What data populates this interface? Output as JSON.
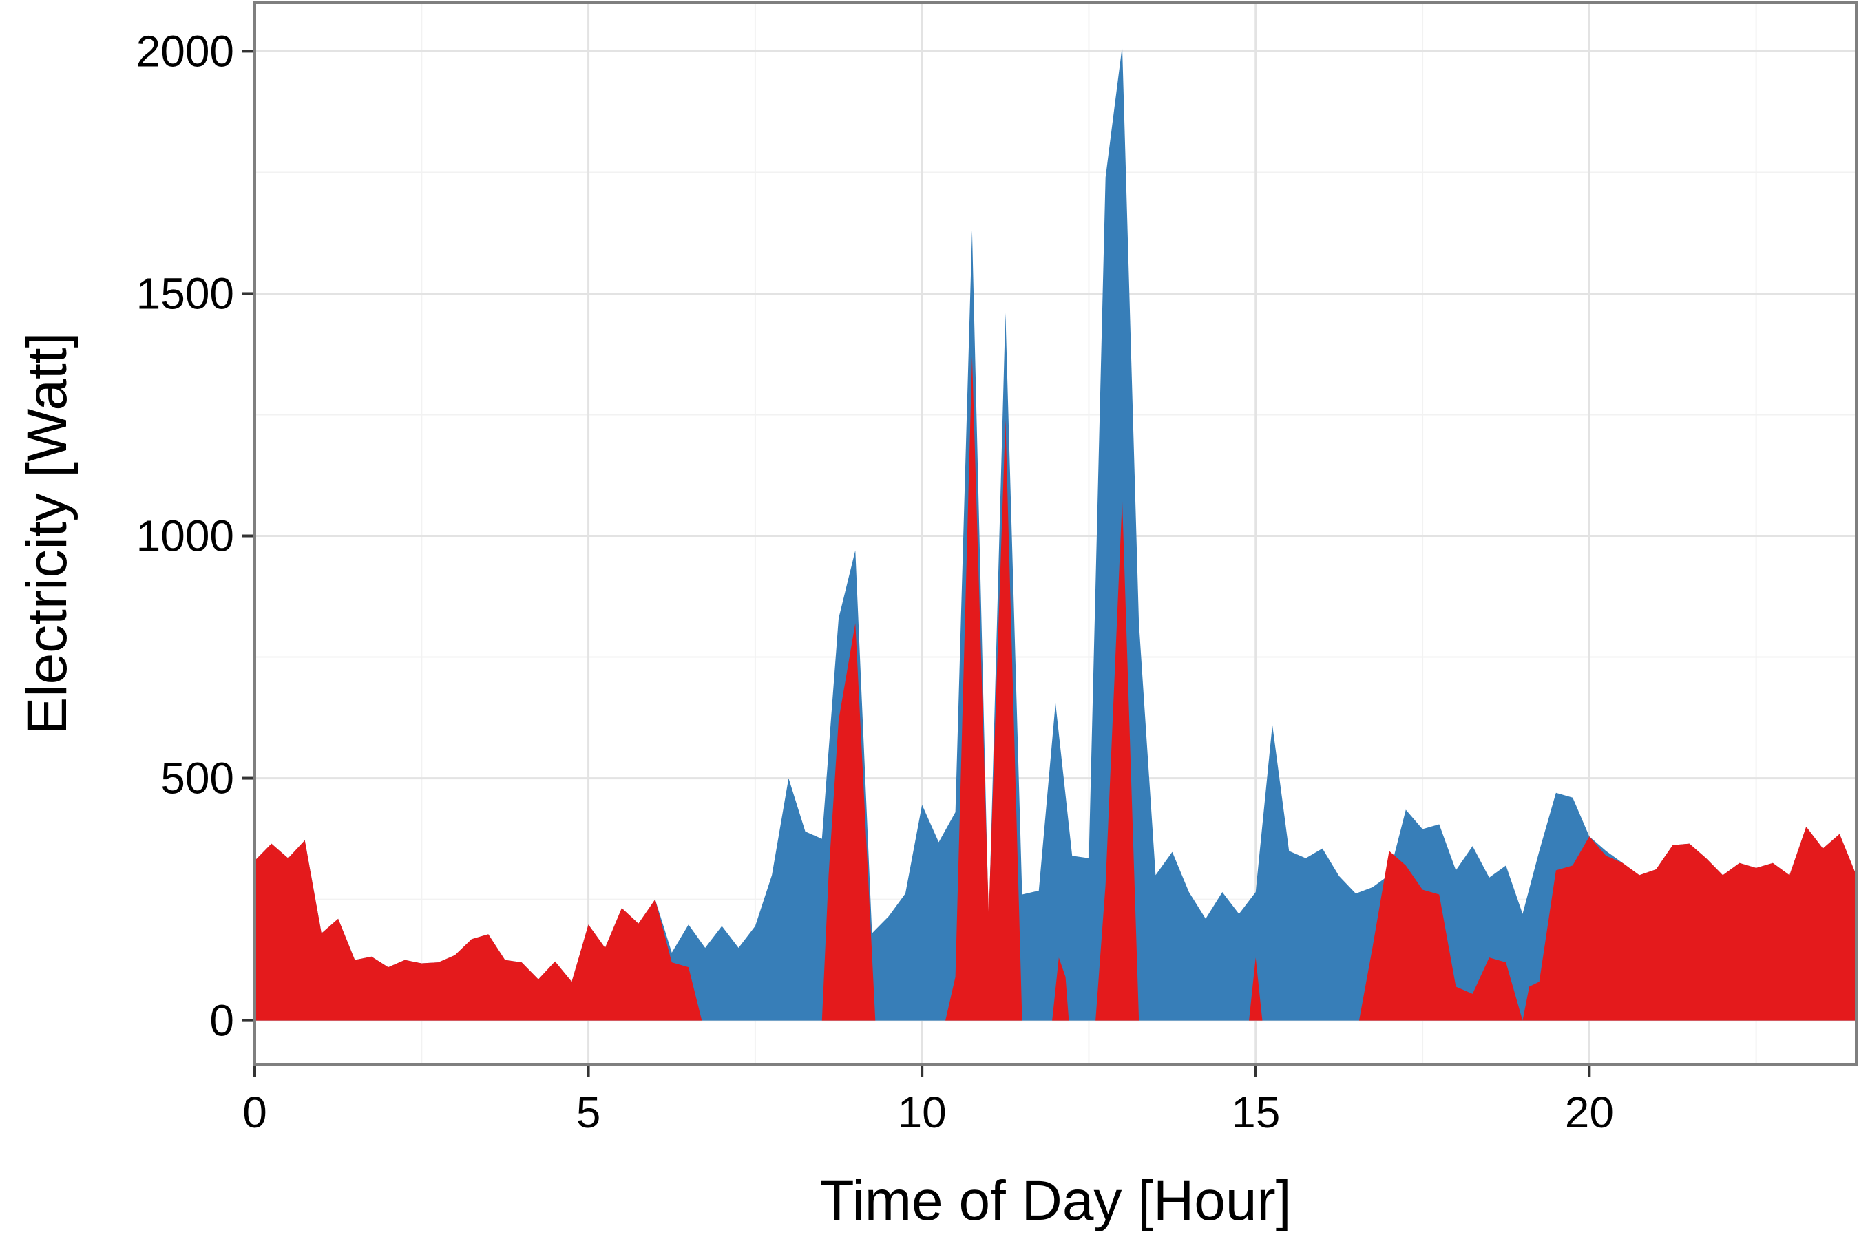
{
  "chart_data": {
    "type": "area",
    "xlabel": "Time of Day [Hour]",
    "ylabel": "Electricity [Watt]",
    "xlim": [
      0,
      24
    ],
    "ylim": [
      -90,
      2100
    ],
    "xticks": [
      0,
      5,
      10,
      15,
      20
    ],
    "yticks": [
      0,
      500,
      1000,
      1500,
      2000
    ],
    "grid": true,
    "legend": "none",
    "series": [
      {
        "color": "#377eb8",
        "points": [
          [
            0,
            330
          ],
          [
            0.25,
            365
          ],
          [
            0.5,
            335
          ],
          [
            0.75,
            372
          ],
          [
            1,
            180
          ],
          [
            1.25,
            210
          ],
          [
            1.5,
            125
          ],
          [
            1.75,
            132
          ],
          [
            2,
            110
          ],
          [
            2.25,
            125
          ],
          [
            2.5,
            118
          ],
          [
            2.75,
            120
          ],
          [
            3,
            135
          ],
          [
            3.25,
            168
          ],
          [
            3.5,
            178
          ],
          [
            3.75,
            125
          ],
          [
            4,
            120
          ],
          [
            4.25,
            85
          ],
          [
            4.5,
            122
          ],
          [
            4.75,
            80
          ],
          [
            5,
            198
          ],
          [
            5.25,
            150
          ],
          [
            5.5,
            232
          ],
          [
            5.75,
            200
          ],
          [
            6,
            250
          ],
          [
            6.25,
            140
          ],
          [
            6.5,
            198
          ],
          [
            6.75,
            150
          ],
          [
            7,
            195
          ],
          [
            7.25,
            150
          ],
          [
            7.5,
            195
          ],
          [
            7.75,
            300
          ],
          [
            8,
            500
          ],
          [
            8.25,
            390
          ],
          [
            8.5,
            375
          ],
          [
            8.75,
            830
          ],
          [
            9,
            970
          ],
          [
            9.25,
            180
          ],
          [
            9.5,
            215
          ],
          [
            9.75,
            262
          ],
          [
            10,
            445
          ],
          [
            10.25,
            368
          ],
          [
            10.5,
            430
          ],
          [
            10.75,
            1630
          ],
          [
            11,
            200
          ],
          [
            11.25,
            1460
          ],
          [
            11.5,
            260
          ],
          [
            11.75,
            268
          ],
          [
            12,
            655
          ],
          [
            12.25,
            340
          ],
          [
            12.5,
            335
          ],
          [
            12.75,
            1740
          ],
          [
            13,
            2010
          ],
          [
            13.25,
            820
          ],
          [
            13.5,
            300
          ],
          [
            13.75,
            348
          ],
          [
            14,
            265
          ],
          [
            14.25,
            210
          ],
          [
            14.5,
            265
          ],
          [
            14.75,
            220
          ],
          [
            15,
            265
          ],
          [
            15.25,
            610
          ],
          [
            15.5,
            350
          ],
          [
            15.75,
            335
          ],
          [
            16,
            355
          ],
          [
            16.25,
            298
          ],
          [
            16.5,
            262
          ],
          [
            16.75,
            275
          ],
          [
            17,
            300
          ],
          [
            17.25,
            435
          ],
          [
            17.5,
            395
          ],
          [
            17.75,
            405
          ],
          [
            18,
            310
          ],
          [
            18.25,
            360
          ],
          [
            18.5,
            295
          ],
          [
            18.75,
            320
          ],
          [
            19,
            220
          ],
          [
            19.25,
            350
          ],
          [
            19.5,
            470
          ],
          [
            19.75,
            460
          ],
          [
            20,
            380
          ],
          [
            20.25,
            350
          ],
          [
            20.5,
            325
          ],
          [
            20.75,
            300
          ],
          [
            21,
            312
          ],
          [
            21.25,
            362
          ],
          [
            21.5,
            365
          ],
          [
            21.75,
            335
          ],
          [
            22,
            300
          ],
          [
            22.25,
            325
          ],
          [
            22.5,
            315
          ],
          [
            22.75,
            325
          ],
          [
            23,
            300
          ],
          [
            23.25,
            400
          ],
          [
            23.5,
            355
          ],
          [
            23.75,
            385
          ],
          [
            24,
            300
          ]
        ]
      },
      {
        "color": "#e41a1c",
        "points": [
          [
            0,
            330
          ],
          [
            0.25,
            365
          ],
          [
            0.5,
            335
          ],
          [
            0.75,
            372
          ],
          [
            1,
            180
          ],
          [
            1.25,
            210
          ],
          [
            1.5,
            125
          ],
          [
            1.75,
            132
          ],
          [
            2,
            110
          ],
          [
            2.25,
            125
          ],
          [
            2.5,
            118
          ],
          [
            2.75,
            120
          ],
          [
            3,
            135
          ],
          [
            3.25,
            168
          ],
          [
            3.5,
            178
          ],
          [
            3.75,
            125
          ],
          [
            4,
            120
          ],
          [
            4.25,
            85
          ],
          [
            4.5,
            122
          ],
          [
            4.75,
            80
          ],
          [
            5,
            198
          ],
          [
            5.25,
            150
          ],
          [
            5.5,
            232
          ],
          [
            5.75,
            200
          ],
          [
            6,
            250
          ],
          [
            6.25,
            120
          ],
          [
            6.5,
            110
          ],
          [
            6.7,
            0
          ],
          [
            8.5,
            0
          ],
          [
            8.6,
            300
          ],
          [
            8.75,
            620
          ],
          [
            9,
            820
          ],
          [
            9.3,
            0
          ],
          [
            10.35,
            0
          ],
          [
            10.5,
            90
          ],
          [
            10.75,
            1370
          ],
          [
            11,
            220
          ],
          [
            11.25,
            1240
          ],
          [
            11.5,
            0
          ],
          [
            11.95,
            0
          ],
          [
            12.05,
            130
          ],
          [
            12.15,
            90
          ],
          [
            12.2,
            0
          ],
          [
            12.6,
            0
          ],
          [
            12.75,
            280
          ],
          [
            13,
            1075
          ],
          [
            13.25,
            0
          ],
          [
            14.9,
            0
          ],
          [
            15,
            130
          ],
          [
            15.1,
            0
          ],
          [
            16.55,
            0
          ],
          [
            16.75,
            150
          ],
          [
            17,
            350
          ],
          [
            17.25,
            320
          ],
          [
            17.5,
            270
          ],
          [
            17.75,
            260
          ],
          [
            18,
            70
          ],
          [
            18.25,
            55
          ],
          [
            18.5,
            130
          ],
          [
            18.75,
            120
          ],
          [
            19,
            0
          ],
          [
            19.1,
            70
          ],
          [
            19.25,
            80
          ],
          [
            19.5,
            310
          ],
          [
            19.75,
            320
          ],
          [
            20,
            380
          ],
          [
            20.25,
            340
          ],
          [
            20.5,
            325
          ],
          [
            20.75,
            300
          ],
          [
            21,
            312
          ],
          [
            21.25,
            362
          ],
          [
            21.5,
            365
          ],
          [
            21.75,
            335
          ],
          [
            22,
            300
          ],
          [
            22.25,
            325
          ],
          [
            22.5,
            315
          ],
          [
            22.75,
            325
          ],
          [
            23,
            300
          ],
          [
            23.25,
            400
          ],
          [
            23.5,
            355
          ],
          [
            23.75,
            385
          ],
          [
            24,
            300
          ]
        ]
      }
    ]
  }
}
